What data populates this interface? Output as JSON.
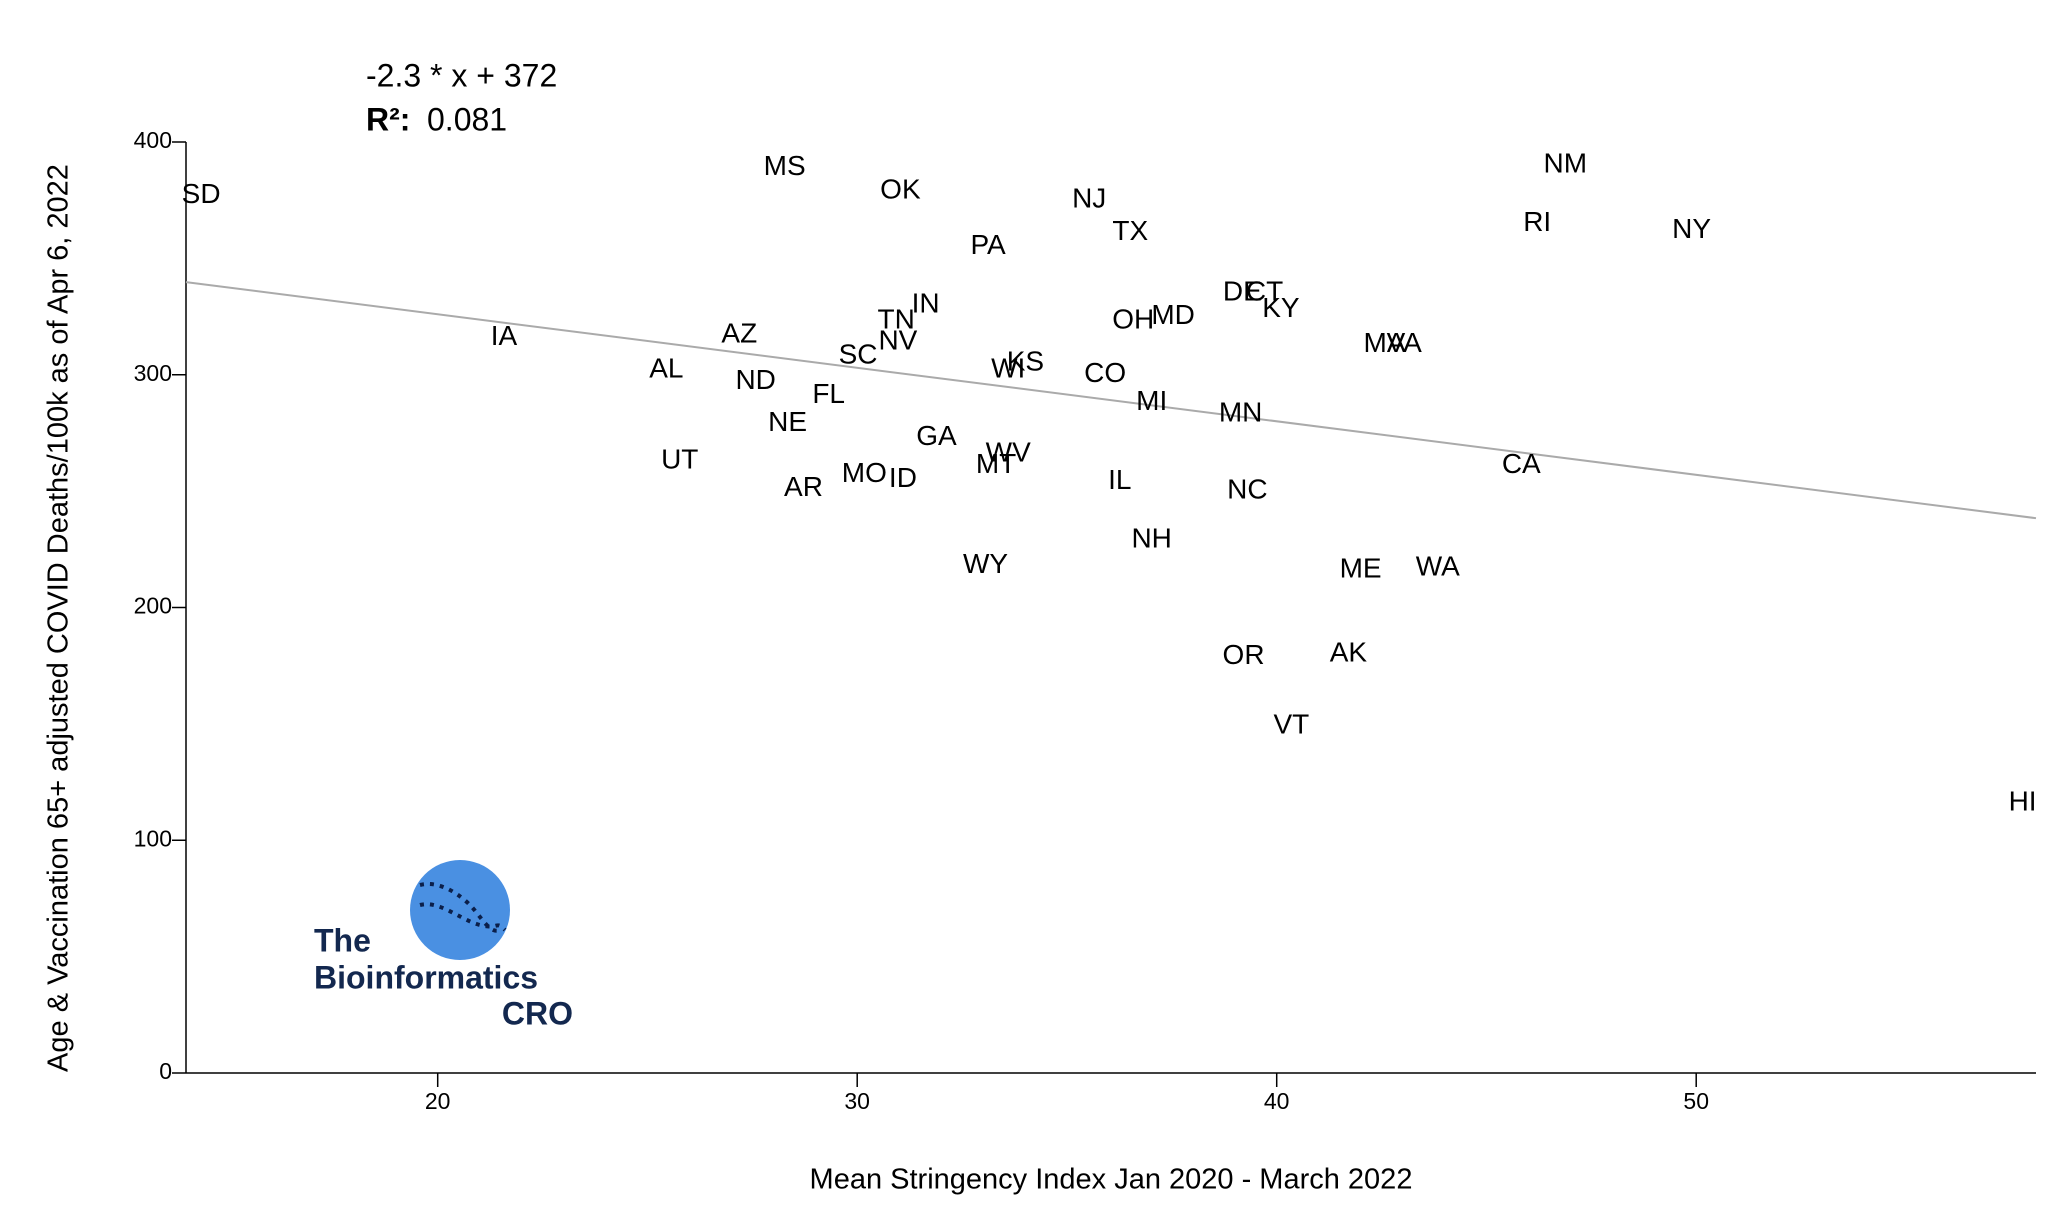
{
  "chart_data": {
    "type": "scatter",
    "equation": "-2.3 * x + 372",
    "r2_label": "R²:",
    "r2": 0.081,
    "trend_slope": -2.3,
    "trend_intercept": 372,
    "x_label": "Mean Stringency Index Jan 2020 - March 2022",
    "y_label": "Age & Vaccination 65+ adjusted COVID Deaths/100k as of Apr 6, 2022",
    "xlim": [
      14,
      58.1
    ],
    "ylim": [
      0,
      400
    ],
    "xticks": [
      20,
      30,
      40,
      50
    ],
    "yticks": [
      0,
      100,
      200,
      300,
      400
    ],
    "color": "#000000",
    "trend_color": "#aaaaaa",
    "labels": [
      "SD",
      "MS",
      "OK",
      "NJ",
      "TX",
      "PA",
      "NM",
      "RI",
      "NY",
      "IA",
      "AZ",
      "AL",
      "ND",
      "NE",
      "FL",
      "SC",
      "NV",
      "TN",
      "IN",
      "WI",
      "KS",
      "CO",
      "OH",
      "MD",
      "DE",
      "CT",
      "KY",
      "MA",
      "VA",
      "MI",
      "MN",
      "GA",
      "WV",
      "MT",
      "UT",
      "AR",
      "MO",
      "ID",
      "IL",
      "NC",
      "CA",
      "NH",
      "WY",
      "ME",
      "WA",
      "OR",
      "AK",
      "VT",
      "HI"
    ],
    "x": [
      14.36,
      28.27,
      31.03,
      35.53,
      36.51,
      33.12,
      46.88,
      46.21,
      49.89,
      21.58,
      27.19,
      25.45,
      27.58,
      28.34,
      29.32,
      30.02,
      30.97,
      30.93,
      31.63,
      33.6,
      34.01,
      35.91,
      36.58,
      37.53,
      39.18,
      39.71,
      40.1,
      42.57,
      43.04,
      37.02,
      39.14,
      31.89,
      33.6,
      33.31,
      25.77,
      28.72,
      30.17,
      31.09,
      36.26,
      39.3,
      45.83,
      37.02,
      33.06,
      42.0,
      43.84,
      39.21,
      41.71,
      40.35,
      57.78
    ],
    "values": [
      377,
      389,
      379,
      375,
      361,
      355,
      390,
      365,
      362,
      316,
      317,
      302,
      297,
      279,
      291,
      308,
      314,
      323,
      330,
      302,
      305,
      300,
      323,
      325,
      335,
      335,
      328,
      313,
      313,
      288,
      283,
      273,
      266,
      261,
      263,
      251,
      257,
      255,
      254,
      250,
      261,
      229,
      218,
      216,
      217,
      179,
      180,
      149,
      116
    ]
  },
  "logo": {
    "line1": "The",
    "line2": "Bioinformatics",
    "line3": "CRO"
  }
}
